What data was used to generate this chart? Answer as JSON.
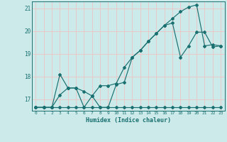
{
  "xlabel": "Humidex (Indice chaleur)",
  "xlim": [
    -0.5,
    23.5
  ],
  "ylim": [
    16.5,
    21.3
  ],
  "yticks": [
    17,
    18,
    19,
    20,
    21
  ],
  "xticks": [
    0,
    1,
    2,
    3,
    4,
    5,
    6,
    7,
    8,
    9,
    10,
    11,
    12,
    13,
    14,
    15,
    16,
    17,
    18,
    19,
    20,
    21,
    22,
    23
  ],
  "bg_color": "#cceaea",
  "line_color": "#1a7070",
  "grid_color": "#e8c8c8",
  "line1_x": [
    0,
    1,
    2,
    3,
    4,
    5,
    6,
    7,
    8,
    9,
    10,
    11,
    12,
    13,
    14,
    15,
    16,
    17,
    18,
    19,
    20,
    21,
    22,
    23
  ],
  "line1_y": [
    16.65,
    16.65,
    16.65,
    16.65,
    16.65,
    16.65,
    16.65,
    16.65,
    16.65,
    16.65,
    16.65,
    16.65,
    16.65,
    16.65,
    16.65,
    16.65,
    16.65,
    16.65,
    16.65,
    16.65,
    16.65,
    16.65,
    16.65,
    16.65
  ],
  "line2_x": [
    0,
    1,
    2,
    3,
    4,
    5,
    6,
    7,
    8,
    9,
    10,
    11,
    12,
    13,
    14,
    15,
    16,
    17,
    18,
    19,
    20,
    21,
    22,
    23
  ],
  "line2_y": [
    16.65,
    16.65,
    16.65,
    18.1,
    17.5,
    17.5,
    17.35,
    17.15,
    17.6,
    17.6,
    17.7,
    18.4,
    18.85,
    19.15,
    19.55,
    19.9,
    20.25,
    20.55,
    20.85,
    21.05,
    21.15,
    19.35,
    19.4,
    19.35
  ],
  "line3_x": [
    0,
    1,
    2,
    3,
    4,
    5,
    6,
    7,
    8,
    9,
    10,
    11,
    12,
    13,
    14,
    15,
    16,
    17,
    18,
    19,
    20,
    21,
    22,
    23
  ],
  "line3_y": [
    16.65,
    16.65,
    16.65,
    17.2,
    17.5,
    17.5,
    16.65,
    17.15,
    16.65,
    16.65,
    17.65,
    17.75,
    18.85,
    19.15,
    19.55,
    19.9,
    20.25,
    20.35,
    18.85,
    19.35,
    19.95,
    19.95,
    19.3,
    19.35
  ]
}
